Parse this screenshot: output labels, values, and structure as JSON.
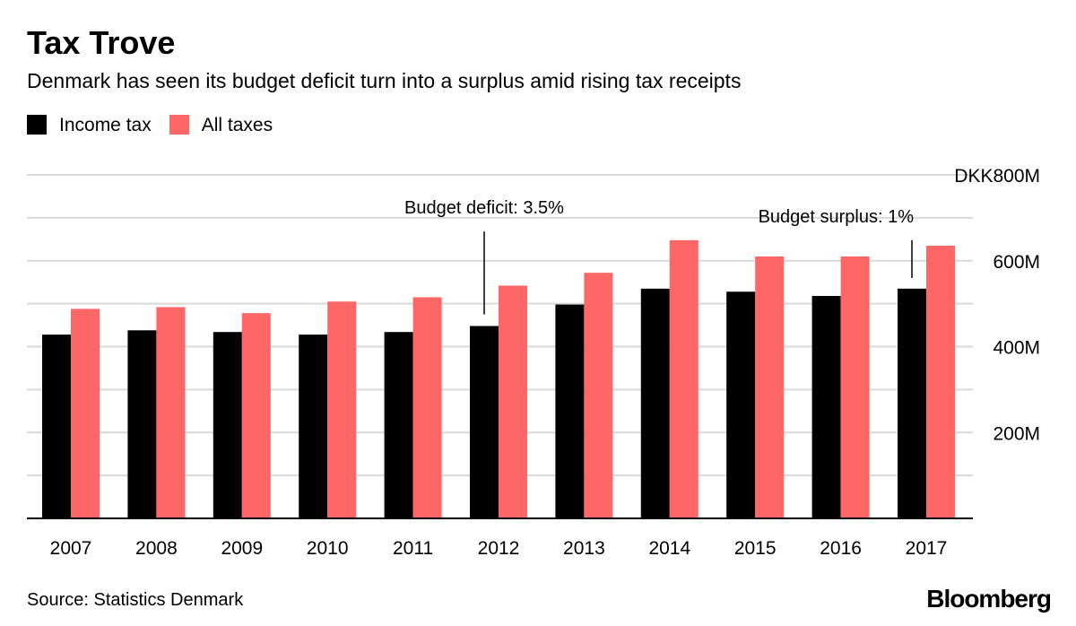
{
  "header": {
    "title": "Tax Trove",
    "subtitle": "Denmark has seen its budget deficit turn into a surplus amid rising tax receipts"
  },
  "legend": {
    "items": [
      {
        "label": "Income tax",
        "color": "#000000"
      },
      {
        "label": "All taxes",
        "color": "#ff6666"
      }
    ]
  },
  "footer": {
    "source": "Source: Statistics Denmark",
    "brand": "Bloomberg"
  },
  "chart_data": {
    "type": "bar",
    "categories": [
      "2007",
      "2008",
      "2009",
      "2010",
      "2011",
      "2012",
      "2013",
      "2014",
      "2015",
      "2016",
      "2017"
    ],
    "series": [
      {
        "name": "Income tax",
        "color": "#000000",
        "values": [
          428,
          438,
          434,
          428,
          434,
          448,
          498,
          535,
          528,
          518,
          535
        ]
      },
      {
        "name": "All taxes",
        "color": "#ff6666",
        "values": [
          488,
          492,
          478,
          505,
          515,
          542,
          572,
          648,
          610,
          610,
          635
        ]
      }
    ],
    "ylim": [
      0,
      800
    ],
    "yticks": [
      {
        "value": 200,
        "label": "200M"
      },
      {
        "value": 400,
        "label": "400M"
      },
      {
        "value": 600,
        "label": "600M"
      },
      {
        "value": 800,
        "label": "DKK800M"
      }
    ],
    "grid": true,
    "axis_side": "right",
    "annotations": [
      {
        "text": "Budget deficit: 3.5%",
        "category": "2012",
        "line_from": 668,
        "line_to": 475
      },
      {
        "text": "Budget surplus: 1%",
        "category": "2017",
        "line_from": 648,
        "line_to": 560
      }
    ]
  }
}
